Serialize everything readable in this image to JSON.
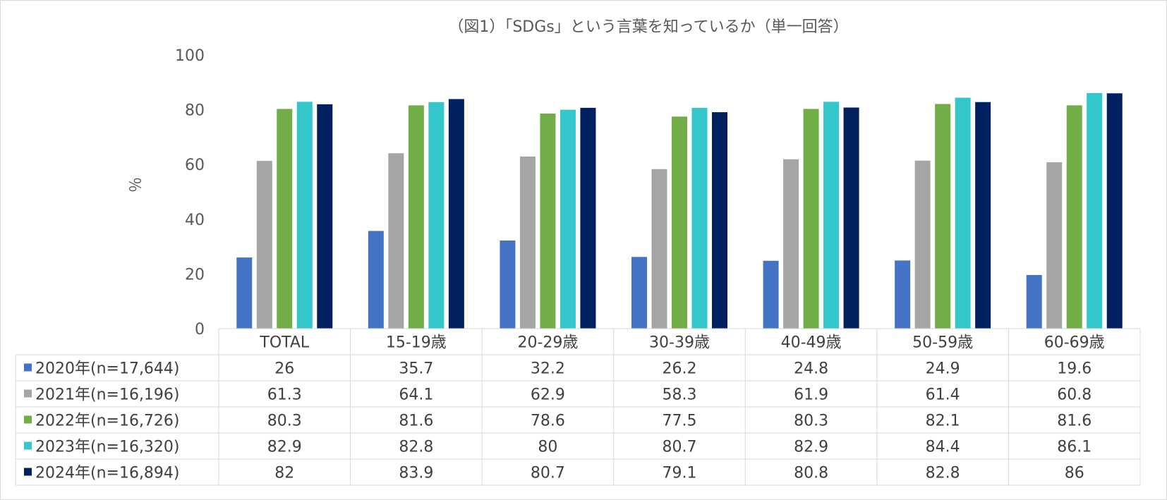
{
  "chart_data": {
    "type": "bar",
    "title": "（図1）「SDGs」という言葉を知っているか（単一回答）",
    "ylabel": "％",
    "ylim": [
      0,
      100
    ],
    "yticks": [
      0,
      20,
      40,
      60,
      80,
      100
    ],
    "grid": false,
    "legend_placement": "data-table-left",
    "categories": [
      "TOTAL",
      "15-19歳",
      "20-29歳",
      "30-39歳",
      "40-49歳",
      "50-59歳",
      "60-69歳"
    ],
    "series": [
      {
        "name": "2020年(n=17,644)",
        "color": "#4472c4",
        "values": [
          26,
          35.7,
          32.2,
          26.2,
          24.8,
          24.9,
          19.6
        ]
      },
      {
        "name": "2021年(n=16,196)",
        "color": "#a5a5a5",
        "values": [
          61.3,
          64.1,
          62.9,
          58.3,
          61.9,
          61.4,
          60.8
        ]
      },
      {
        "name": "2022年(n=16,726)",
        "color": "#70ad47",
        "values": [
          80.3,
          81.6,
          78.6,
          77.5,
          80.3,
          82.1,
          81.6
        ]
      },
      {
        "name": "2023年(n=16,320)",
        "color": "#33c7cc",
        "values": [
          82.9,
          82.8,
          80,
          80.7,
          82.9,
          84.4,
          86.1
        ]
      },
      {
        "name": "2024年(n=16,894)",
        "color": "#002060",
        "values": [
          82,
          83.9,
          80.7,
          79.1,
          80.8,
          82.8,
          86
        ]
      }
    ]
  }
}
